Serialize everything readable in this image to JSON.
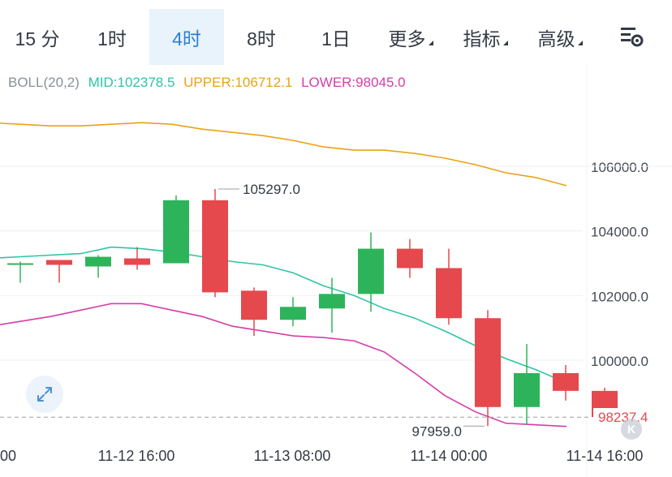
{
  "tabs": [
    {
      "label": "15 分",
      "active": false,
      "dropdown": false
    },
    {
      "label": "1时",
      "active": false,
      "dropdown": false
    },
    {
      "label": "4时",
      "active": true,
      "dropdown": false
    },
    {
      "label": "8时",
      "active": false,
      "dropdown": false
    },
    {
      "label": "1日",
      "active": false,
      "dropdown": false
    },
    {
      "label": "更多",
      "active": false,
      "dropdown": true
    },
    {
      "label": "指标",
      "active": false,
      "dropdown": true
    },
    {
      "label": "高级",
      "active": false,
      "dropdown": true
    }
  ],
  "settings_icon": "chart-settings-icon",
  "legend": {
    "boll": "BOLL(20,2)",
    "mid": "MID:102378.5",
    "upper": "UPPER:106712.1",
    "lower": "LOWER:98045.0"
  },
  "colors": {
    "up": "#2db45a",
    "down": "#e5484d",
    "mid": "#2ec4a6",
    "upper": "#e8a317",
    "lower": "#d63da8",
    "active_tab": "#2f7fd1",
    "text": "#333a44",
    "axis_text": "#444b55",
    "grid": "#eef0f3"
  },
  "current_price": "98237.4",
  "expand_icon": "expand-arrows-icon",
  "watermark_icon": "k-logo-icon",
  "chart_data": {
    "type": "candlestick",
    "y_ticks": [
      "106000.0",
      "104000.0",
      "102000.0",
      "100000.0"
    ],
    "y_tick_values": [
      106000,
      104000,
      102000,
      100000
    ],
    "x_tick_labels": [
      "00",
      "11-12 16:00",
      "11-13 08:00",
      "11-14 00:00",
      "11-14 16:00"
    ],
    "max_label": "105297.0",
    "min_label": "97959.0",
    "last_price": 98237.4,
    "candles": [
      {
        "open": 103000,
        "high": 103050,
        "low": 102400,
        "close": 103000
      },
      {
        "open": 103100,
        "high": 103100,
        "low": 102400,
        "close": 102950
      },
      {
        "open": 102900,
        "high": 103250,
        "low": 102550,
        "close": 103200
      },
      {
        "open": 103150,
        "high": 103500,
        "low": 102800,
        "close": 102950
      },
      {
        "open": 103000,
        "high": 105100,
        "low": 103000,
        "close": 104950
      },
      {
        "open": 104950,
        "high": 105297,
        "low": 101950,
        "close": 102100
      },
      {
        "open": 102150,
        "high": 102250,
        "low": 100750,
        "close": 101250
      },
      {
        "open": 101250,
        "high": 101950,
        "low": 101050,
        "close": 101650
      },
      {
        "open": 101600,
        "high": 102550,
        "low": 100850,
        "close": 102050
      },
      {
        "open": 102050,
        "high": 103950,
        "low": 101500,
        "close": 103450
      },
      {
        "open": 103450,
        "high": 103750,
        "low": 102550,
        "close": 102850
      },
      {
        "open": 102850,
        "high": 103450,
        "low": 101100,
        "close": 101300
      },
      {
        "open": 101300,
        "high": 101550,
        "low": 97959,
        "close": 98550
      },
      {
        "open": 98550,
        "high": 100500,
        "low": 98000,
        "close": 99600
      },
      {
        "open": 99600,
        "high": 99850,
        "low": 98750,
        "close": 99050
      },
      {
        "open": 99050,
        "high": 99150,
        "low": 98237.4,
        "close": 98237.4
      }
    ],
    "boll_mid": [
      103050,
      103150,
      103200,
      103250,
      103300,
      103500,
      103450,
      103350,
      103200,
      103050,
      102950,
      102700,
      102300,
      102000,
      101600,
      101300,
      100900,
      100450,
      100050,
      99700,
      99300
    ],
    "boll_upper": [
      107450,
      107350,
      107300,
      107250,
      107250,
      107300,
      107350,
      107300,
      107150,
      107050,
      106950,
      106800,
      106600,
      106500,
      106500,
      106400,
      106250,
      106050,
      105800,
      105650,
      105400
    ],
    "boll_lower": [
      100800,
      101050,
      101200,
      101350,
      101550,
      101750,
      101750,
      101550,
      101350,
      101050,
      100900,
      100750,
      100700,
      100600,
      100250,
      99600,
      98900,
      98400,
      98050,
      98000,
      97950
    ]
  }
}
